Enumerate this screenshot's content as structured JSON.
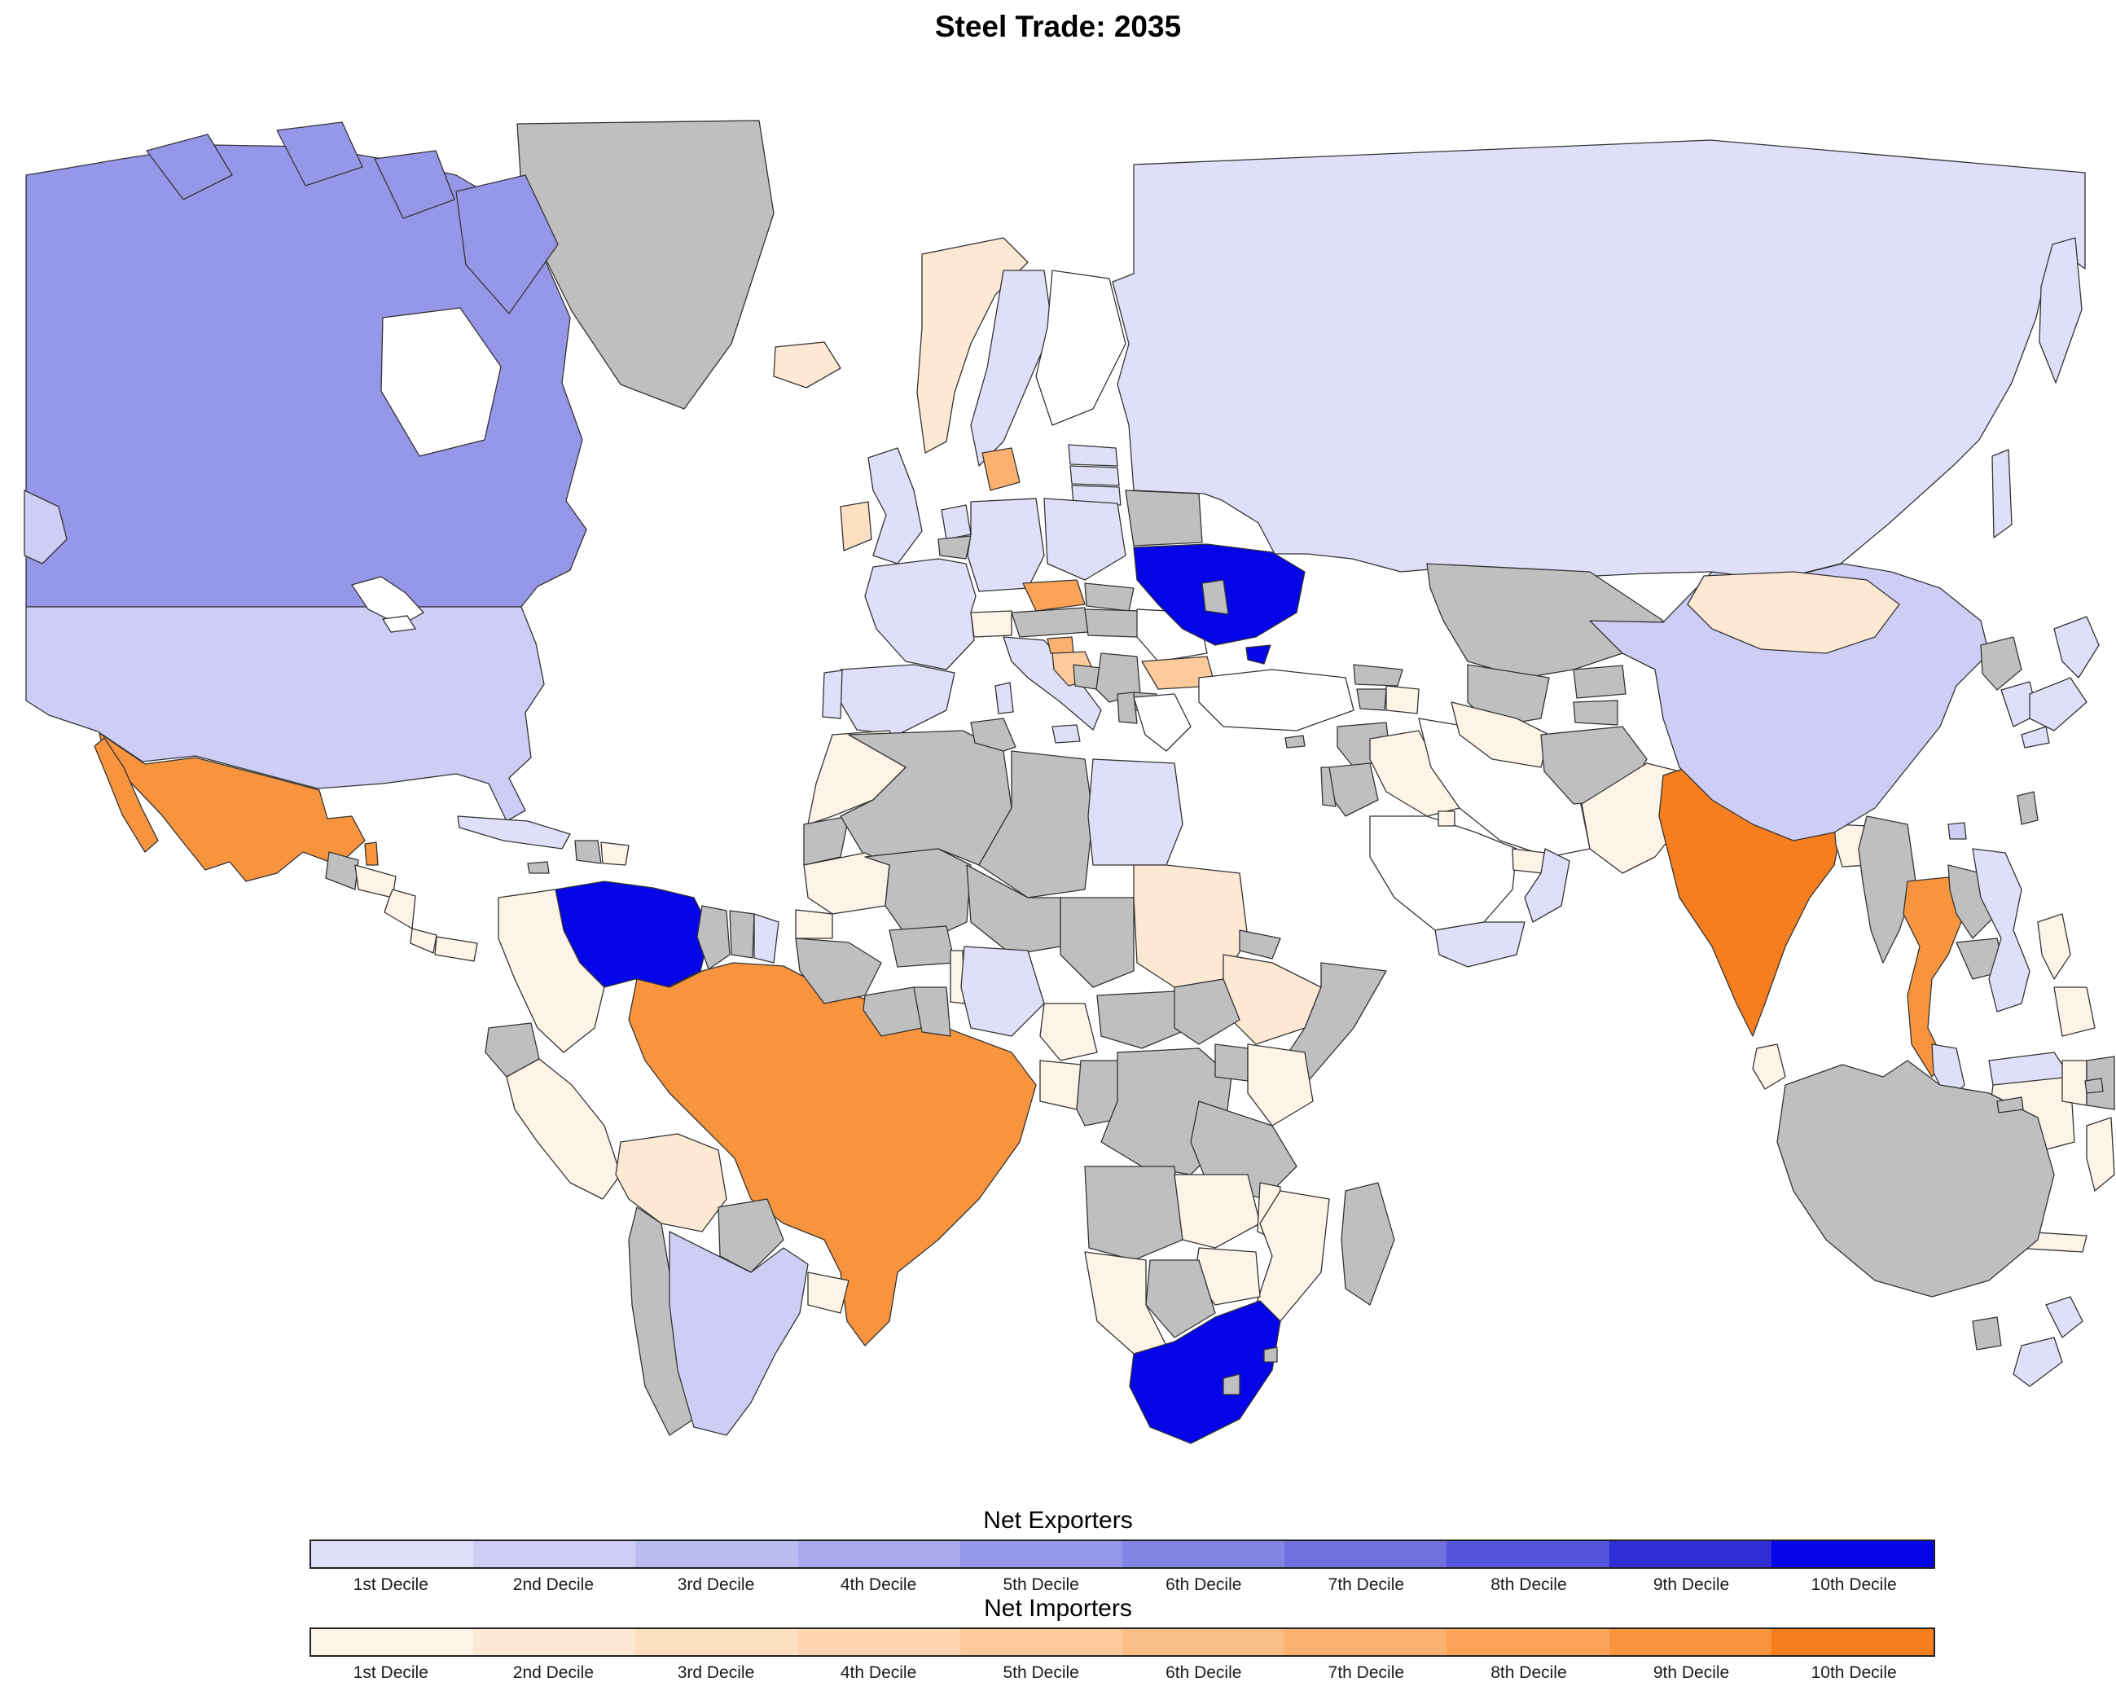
{
  "title": "Steel Trade: 2035",
  "colors": {
    "background": "#ffffff",
    "ocean": "#ffffff",
    "border": "#333333",
    "no_data": "#bfbfbf",
    "no_fill": "#ffffff"
  },
  "legend": {
    "exporters": {
      "title": "Net Exporters",
      "labels": [
        "1st Decile",
        "2nd Decile",
        "3rd Decile",
        "4th Decile",
        "5th Decile",
        "6th Decile",
        "7th Decile",
        "8th Decile",
        "9th Decile",
        "10th Decile"
      ],
      "colors": [
        "#dfdff9",
        "#cdcdf5",
        "#bbbbf1",
        "#a9a9ed",
        "#9797e9",
        "#8484e5",
        "#7070e1",
        "#5454db",
        "#2e2ed4",
        "#0505e8"
      ]
    },
    "importers": {
      "title": "Net Importers",
      "labels": [
        "1st Decile",
        "2nd Decile",
        "3rd Decile",
        "4th Decile",
        "5th Decile",
        "6th Decile",
        "7th Decile",
        "8th Decile",
        "9th Decile",
        "10th Decile"
      ],
      "colors": [
        "#fdf3e6",
        "#fde9d3",
        "#fddfc2",
        "#fdd5b0",
        "#fdca9c",
        "#fcbe87",
        "#fcb171",
        "#fba458",
        "#f9943e",
        "#f67e1e"
      ]
    }
  },
  "chart_data": {
    "type": "choropleth_map",
    "title": "Steel Trade: 2035",
    "region": "world",
    "units": "decile",
    "groups": [
      "net_exporter",
      "net_importer",
      "no_data",
      "no_fill"
    ],
    "legend_position": "bottom",
    "countries": [
      {
        "id": "greenland",
        "name": "Greenland",
        "group": "no_data",
        "decile": null
      },
      {
        "id": "russia",
        "name": "Russia",
        "group": "net_exporter",
        "decile": 1
      },
      {
        "id": "canada",
        "name": "Canada",
        "group": "net_exporter",
        "decile": 5
      },
      {
        "id": "usa",
        "name": "United States",
        "group": "net_exporter",
        "decile": 2
      },
      {
        "id": "mexico",
        "name": "Mexico",
        "group": "net_importer",
        "decile": 9
      },
      {
        "id": "belize",
        "name": "Belize",
        "group": "net_importer",
        "decile": 9
      },
      {
        "id": "guatemala",
        "name": "Guatemala",
        "group": "no_data",
        "decile": null
      },
      {
        "id": "honduras",
        "name": "Honduras",
        "group": "net_importer",
        "decile": 1
      },
      {
        "id": "nicaragua",
        "name": "Nicaragua",
        "group": "net_importer",
        "decile": 1
      },
      {
        "id": "costa-rica",
        "name": "Costa Rica",
        "group": "net_importer",
        "decile": 1
      },
      {
        "id": "panama",
        "name": "Panama",
        "group": "net_importer",
        "decile": 1
      },
      {
        "id": "cuba",
        "name": "Cuba",
        "group": "net_exporter",
        "decile": 1
      },
      {
        "id": "haiti",
        "name": "Haiti",
        "group": "no_data",
        "decile": null
      },
      {
        "id": "dominican-republic",
        "name": "Dominican Republic",
        "group": "net_importer",
        "decile": 1
      },
      {
        "id": "jamaica",
        "name": "Jamaica",
        "group": "no_data",
        "decile": null
      },
      {
        "id": "venezuela",
        "name": "Venezuela",
        "group": "net_exporter",
        "decile": 10
      },
      {
        "id": "colombia",
        "name": "Colombia",
        "group": "net_importer",
        "decile": 1
      },
      {
        "id": "guyana",
        "name": "Guyana",
        "group": "no_data",
        "decile": null
      },
      {
        "id": "suriname",
        "name": "Suriname",
        "group": "no_data",
        "decile": null
      },
      {
        "id": "french-guiana",
        "name": "French Guiana",
        "group": "net_exporter",
        "decile": 1
      },
      {
        "id": "ecuador",
        "name": "Ecuador",
        "group": "no_data",
        "decile": null
      },
      {
        "id": "peru",
        "name": "Peru",
        "group": "net_importer",
        "decile": 1
      },
      {
        "id": "brazil",
        "name": "Brazil",
        "group": "net_importer",
        "decile": 9
      },
      {
        "id": "bolivia",
        "name": "Bolivia",
        "group": "net_importer",
        "decile": 2
      },
      {
        "id": "paraguay",
        "name": "Paraguay",
        "group": "no_data",
        "decile": null
      },
      {
        "id": "chile",
        "name": "Chile",
        "group": "no_data",
        "decile": null
      },
      {
        "id": "argentina",
        "name": "Argentina",
        "group": "net_exporter",
        "decile": 2
      },
      {
        "id": "uruguay",
        "name": "Uruguay",
        "group": "net_importer",
        "decile": 1
      },
      {
        "id": "iceland",
        "name": "Iceland",
        "group": "net_importer",
        "decile": 2
      },
      {
        "id": "uk",
        "name": "United Kingdom",
        "group": "net_exporter",
        "decile": 1
      },
      {
        "id": "ireland",
        "name": "Ireland",
        "group": "net_importer",
        "decile": 3
      },
      {
        "id": "norway",
        "name": "Norway",
        "group": "net_importer",
        "decile": 2
      },
      {
        "id": "sweden",
        "name": "Sweden",
        "group": "net_exporter",
        "decile": 1
      },
      {
        "id": "finland",
        "name": "Finland",
        "group": "no_fill",
        "decile": null
      },
      {
        "id": "denmark",
        "name": "Denmark",
        "group": "net_importer",
        "decile": 7
      },
      {
        "id": "estonia",
        "name": "Estonia",
        "group": "net_exporter",
        "decile": 1
      },
      {
        "id": "latvia",
        "name": "Latvia",
        "group": "net_exporter",
        "decile": 1
      },
      {
        "id": "lithuania",
        "name": "Lithuania",
        "group": "net_exporter",
        "decile": 1
      },
      {
        "id": "netherlands",
        "name": "Netherlands",
        "group": "net_exporter",
        "decile": 1
      },
      {
        "id": "belgium",
        "name": "Belgium",
        "group": "no_data",
        "decile": null
      },
      {
        "id": "germany",
        "name": "Germany",
        "group": "net_exporter",
        "decile": 1
      },
      {
        "id": "poland",
        "name": "Poland",
        "group": "net_exporter",
        "decile": 1
      },
      {
        "id": "czech-republic",
        "name": "Czech Republic",
        "group": "net_importer",
        "decile": 8
      },
      {
        "id": "slovakia",
        "name": "Slovakia",
        "group": "no_data",
        "decile": null
      },
      {
        "id": "austria",
        "name": "Austria",
        "group": "no_data",
        "decile": null
      },
      {
        "id": "switzerland",
        "name": "Switzerland",
        "group": "net_importer",
        "decile": 1
      },
      {
        "id": "france",
        "name": "France",
        "group": "net_exporter",
        "decile": 1
      },
      {
        "id": "spain",
        "name": "Spain",
        "group": "net_exporter",
        "decile": 1
      },
      {
        "id": "portugal",
        "name": "Portugal",
        "group": "net_exporter",
        "decile": 1
      },
      {
        "id": "italy",
        "name": "Italy",
        "group": "net_exporter",
        "decile": 1
      },
      {
        "id": "slovenia",
        "name": "Slovenia",
        "group": "net_importer",
        "decile": 7
      },
      {
        "id": "croatia",
        "name": "Croatia",
        "group": "net_importer",
        "decile": 5
      },
      {
        "id": "bosnia",
        "name": "Bosnia and Herzegovina",
        "group": "no_data",
        "decile": null
      },
      {
        "id": "serbia",
        "name": "Serbia",
        "group": "no_data",
        "decile": null
      },
      {
        "id": "albania",
        "name": "Albania",
        "group": "no_data",
        "decile": null
      },
      {
        "id": "north-macedonia",
        "name": "North Macedonia",
        "group": "no_data",
        "decile": null
      },
      {
        "id": "hungary",
        "name": "Hungary",
        "group": "no_data",
        "decile": null
      },
      {
        "id": "romania",
        "name": "Romania",
        "group": "no_fill",
        "decile": null
      },
      {
        "id": "bulgaria",
        "name": "Bulgaria",
        "group": "net_importer",
        "decile": 5
      },
      {
        "id": "greece",
        "name": "Greece",
        "group": "no_fill",
        "decile": null
      },
      {
        "id": "belarus",
        "name": "Belarus",
        "group": "no_data",
        "decile": null
      },
      {
        "id": "ukraine",
        "name": "Ukraine",
        "group": "net_exporter",
        "decile": 10
      },
      {
        "id": "moldova",
        "name": "Moldova",
        "group": "no_data",
        "decile": null
      },
      {
        "id": "turkey",
        "name": "Turkey",
        "group": "no_fill",
        "decile": null
      },
      {
        "id": "cyprus",
        "name": "Cyprus",
        "group": "no_data",
        "decile": null
      },
      {
        "id": "georgia",
        "name": "Georgia",
        "group": "no_data",
        "decile": null
      },
      {
        "id": "armenia",
        "name": "Armenia",
        "group": "no_data",
        "decile": null
      },
      {
        "id": "azerbaijan",
        "name": "Azerbaijan",
        "group": "net_importer",
        "decile": 1
      },
      {
        "id": "syria",
        "name": "Syria",
        "group": "no_data",
        "decile": null
      },
      {
        "id": "jordan",
        "name": "Jordan",
        "group": "no_data",
        "decile": null
      },
      {
        "id": "israel",
        "name": "Israel",
        "group": "no_data",
        "decile": null
      },
      {
        "id": "iraq",
        "name": "Iraq",
        "group": "net_importer",
        "decile": 1
      },
      {
        "id": "iran",
        "name": "Iran",
        "group": "no_fill",
        "decile": null
      },
      {
        "id": "saudi-arabia",
        "name": "Saudi Arabia",
        "group": "no_fill",
        "decile": null
      },
      {
        "id": "kuwait",
        "name": "Kuwait",
        "group": "net_importer",
        "decile": 1
      },
      {
        "id": "uae",
        "name": "United Arab Emirates",
        "group": "net_importer",
        "decile": 1
      },
      {
        "id": "oman",
        "name": "Oman",
        "group": "net_exporter",
        "decile": 1
      },
      {
        "id": "yemen",
        "name": "Yemen",
        "group": "net_exporter",
        "decile": 1
      },
      {
        "id": "kazakhstan",
        "name": "Kazakhstan",
        "group": "no_data",
        "decile": null
      },
      {
        "id": "uzbekistan",
        "name": "Uzbekistan",
        "group": "no_data",
        "decile": null
      },
      {
        "id": "turkmenistan",
        "name": "Turkmenistan",
        "group": "net_importer",
        "decile": 1
      },
      {
        "id": "kyrgyzstan",
        "name": "Kyrgyzstan",
        "group": "no_data",
        "decile": null
      },
      {
        "id": "tajikistan",
        "name": "Tajikistan",
        "group": "no_data",
        "decile": null
      },
      {
        "id": "afghanistan",
        "name": "Afghanistan",
        "group": "no_data",
        "decile": null
      },
      {
        "id": "pakistan",
        "name": "Pakistan",
        "group": "net_importer",
        "decile": 1
      },
      {
        "id": "india",
        "name": "India",
        "group": "net_importer",
        "decile": 10
      },
      {
        "id": "nepal",
        "name": "Nepal",
        "group": "no_data",
        "decile": null
      },
      {
        "id": "bhutan",
        "name": "Bhutan",
        "group": "no_data",
        "decile": null
      },
      {
        "id": "bangladesh",
        "name": "Bangladesh",
        "group": "net_importer",
        "decile": 1
      },
      {
        "id": "sri-lanka",
        "name": "Sri Lanka",
        "group": "net_importer",
        "decile": 1
      },
      {
        "id": "china",
        "name": "China",
        "group": "net_exporter",
        "decile": 2
      },
      {
        "id": "mongolia",
        "name": "Mongolia",
        "group": "net_importer",
        "decile": 2
      },
      {
        "id": "north-korea",
        "name": "North Korea",
        "group": "no_data",
        "decile": null
      },
      {
        "id": "south-korea",
        "name": "South Korea",
        "group": "net_exporter",
        "decile": 1
      },
      {
        "id": "japan",
        "name": "Japan",
        "group": "net_exporter",
        "decile": 1
      },
      {
        "id": "taiwan",
        "name": "Taiwan",
        "group": "no_data",
        "decile": null
      },
      {
        "id": "myanmar",
        "name": "Myanmar",
        "group": "no_data",
        "decile": null
      },
      {
        "id": "thailand",
        "name": "Thailand",
        "group": "net_importer",
        "decile": 9
      },
      {
        "id": "laos",
        "name": "Laos",
        "group": "no_data",
        "decile": null
      },
      {
        "id": "cambodia",
        "name": "Cambodia",
        "group": "no_data",
        "decile": null
      },
      {
        "id": "vietnam",
        "name": "Vietnam",
        "group": "net_exporter",
        "decile": 1
      },
      {
        "id": "malaysia",
        "name": "Malaysia",
        "group": "net_exporter",
        "decile": 1
      },
      {
        "id": "indonesia",
        "name": "Indonesia",
        "group": "net_importer",
        "decile": 1
      },
      {
        "id": "philippines",
        "name": "Philippines",
        "group": "net_importer",
        "decile": 1
      },
      {
        "id": "papua-new-guinea",
        "name": "Papua New Guinea",
        "group": "no_data",
        "decile": null
      },
      {
        "id": "australia",
        "name": "Australia",
        "group": "no_data",
        "decile": null
      },
      {
        "id": "new-zealand",
        "name": "New Zealand",
        "group": "net_exporter",
        "decile": 1
      },
      {
        "id": "new-caledonia",
        "name": "New Caledonia",
        "group": "no_data",
        "decile": null
      },
      {
        "id": "fiji",
        "name": "Fiji",
        "group": "no_data",
        "decile": null
      },
      {
        "id": "morocco",
        "name": "Morocco",
        "group": "net_importer",
        "decile": 1
      },
      {
        "id": "western-sahara",
        "name": "Western Sahara",
        "group": "no_data",
        "decile": null
      },
      {
        "id": "algeria",
        "name": "Algeria",
        "group": "no_data",
        "decile": null
      },
      {
        "id": "tunisia",
        "name": "Tunisia",
        "group": "no_data",
        "decile": null
      },
      {
        "id": "libya",
        "name": "Libya",
        "group": "no_data",
        "decile": null
      },
      {
        "id": "egypt",
        "name": "Egypt",
        "group": "net_exporter",
        "decile": 1
      },
      {
        "id": "mauritania",
        "name": "Mauritania",
        "group": "net_importer",
        "decile": 1
      },
      {
        "id": "mali",
        "name": "Mali",
        "group": "no_data",
        "decile": null
      },
      {
        "id": "niger",
        "name": "Niger",
        "group": "no_data",
        "decile": null
      },
      {
        "id": "chad",
        "name": "Chad",
        "group": "no_data",
        "decile": null
      },
      {
        "id": "sudan",
        "name": "Sudan",
        "group": "net_importer",
        "decile": 2
      },
      {
        "id": "eritrea",
        "name": "Eritrea",
        "group": "no_data",
        "decile": null
      },
      {
        "id": "ethiopia",
        "name": "Ethiopia",
        "group": "net_importer",
        "decile": 2
      },
      {
        "id": "somalia",
        "name": "Somalia",
        "group": "no_data",
        "decile": null
      },
      {
        "id": "senegal",
        "name": "Senegal",
        "group": "net_importer",
        "decile": 1
      },
      {
        "id": "guinea",
        "name": "Guinea",
        "group": "no_data",
        "decile": null
      },
      {
        "id": "cote-divoire",
        "name": "Cote d'Ivoire",
        "group": "no_data",
        "decile": null
      },
      {
        "id": "ghana",
        "name": "Ghana",
        "group": "no_data",
        "decile": null
      },
      {
        "id": "burkina-faso",
        "name": "Burkina Faso",
        "group": "no_data",
        "decile": null
      },
      {
        "id": "benin",
        "name": "Benin",
        "group": "net_importer",
        "decile": 1
      },
      {
        "id": "nigeria",
        "name": "Nigeria",
        "group": "net_exporter",
        "decile": 1
      },
      {
        "id": "cameroon",
        "name": "Cameroon",
        "group": "net_importer",
        "decile": 1
      },
      {
        "id": "central-african-republic",
        "name": "Central African Republic",
        "group": "no_data",
        "decile": null
      },
      {
        "id": "south-sudan",
        "name": "South Sudan",
        "group": "no_data",
        "decile": null
      },
      {
        "id": "gabon",
        "name": "Gabon",
        "group": "net_importer",
        "decile": 1
      },
      {
        "id": "congo",
        "name": "Republic of the Congo",
        "group": "no_data",
        "decile": null
      },
      {
        "id": "drc",
        "name": "Democratic Republic of the Congo",
        "group": "no_data",
        "decile": null
      },
      {
        "id": "uganda",
        "name": "Uganda",
        "group": "no_data",
        "decile": null
      },
      {
        "id": "kenya",
        "name": "Kenya",
        "group": "net_importer",
        "decile": 1
      },
      {
        "id": "tanzania",
        "name": "Tanzania",
        "group": "no_data",
        "decile": null
      },
      {
        "id": "angola",
        "name": "Angola",
        "group": "no_data",
        "decile": null
      },
      {
        "id": "zambia",
        "name": "Zambia",
        "group": "net_importer",
        "decile": 1
      },
      {
        "id": "malawi",
        "name": "Malawi",
        "group": "net_importer",
        "decile": 1
      },
      {
        "id": "mozambique",
        "name": "Mozambique",
        "group": "net_importer",
        "decile": 1
      },
      {
        "id": "zimbabwe",
        "name": "Zimbabwe",
        "group": "net_importer",
        "decile": 1
      },
      {
        "id": "botswana",
        "name": "Botswana",
        "group": "no_data",
        "decile": null
      },
      {
        "id": "namibia",
        "name": "Namibia",
        "group": "net_importer",
        "decile": 1
      },
      {
        "id": "south-africa",
        "name": "South Africa",
        "group": "net_exporter",
        "decile": 10
      },
      {
        "id": "lesotho",
        "name": "Lesotho",
        "group": "no_data",
        "decile": null
      },
      {
        "id": "eswatini",
        "name": "Eswatini",
        "group": "no_data",
        "decile": null
      },
      {
        "id": "madagascar",
        "name": "Madagascar",
        "group": "no_data",
        "decile": null
      }
    ]
  }
}
